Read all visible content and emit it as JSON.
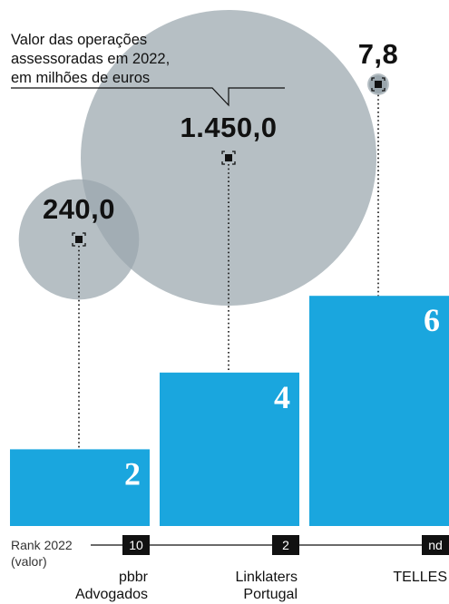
{
  "chart_data": {
    "type": "bar",
    "subtitle_lines": [
      "Valor das operações",
      "assessoradas em 2022,",
      "em milhões de euros"
    ],
    "categories": [
      {
        "name_lines": [
          "pbbr",
          "Advogados"
        ],
        "bar_value": 2,
        "bubble_value": 240.0,
        "bubble_label": "240,0",
        "rank_2022_valor": "10"
      },
      {
        "name_lines": [
          "Linklaters",
          "Portugal"
        ],
        "bar_value": 4,
        "bubble_value": 1450.0,
        "bubble_label": "1.450,0",
        "rank_2022_valor": "2"
      },
      {
        "name_lines": [
          "TELLES"
        ],
        "bar_value": 6,
        "bubble_value": 7.8,
        "bubble_label": "7,8",
        "rank_2022_valor": "nd"
      }
    ],
    "bar_labels": [
      "2",
      "4",
      "6"
    ],
    "rank_axis_label_lines": [
      "Rank 2022",
      "(valor)"
    ],
    "colors": {
      "bar": "#1aa6de",
      "bubble": "#9aa6ad",
      "bubble_opacity": 0.72,
      "rank_box": "#111111",
      "text": "#111111",
      "bar_label": "#ffffff"
    }
  }
}
